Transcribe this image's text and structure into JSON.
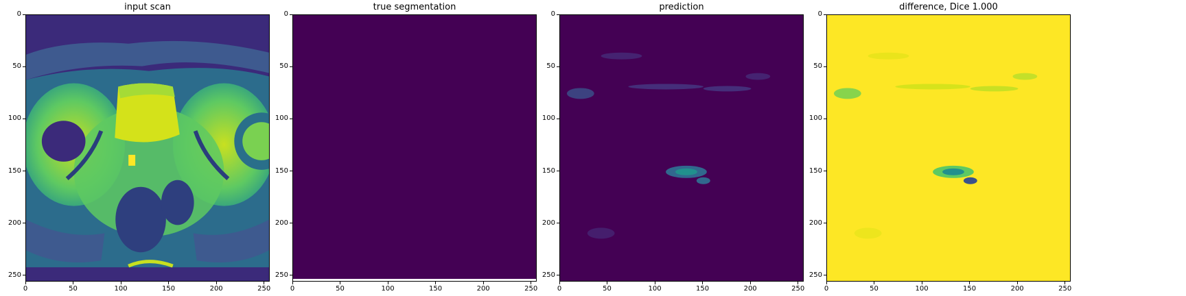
{
  "figure": {
    "panels": [
      {
        "id": "input-scan",
        "title": "input scan"
      },
      {
        "id": "true-segmentation",
        "title": "true segmentation"
      },
      {
        "id": "prediction",
        "title": "prediction"
      },
      {
        "id": "difference",
        "title": "difference, Dice 1.000"
      }
    ],
    "x_ticks": [
      "0",
      "50",
      "100",
      "150",
      "200",
      "250"
    ],
    "y_ticks": [
      "0",
      "50",
      "100",
      "150",
      "200",
      "250"
    ],
    "tick_values": [
      0,
      50,
      100,
      150,
      200,
      250
    ],
    "axis_range": [
      0,
      256
    ],
    "colormap": "viridis",
    "colors": {
      "viridis_low": "#440154",
      "viridis_mid": "#21908d",
      "viridis_green": "#5ec962",
      "viridis_high": "#fde725"
    }
  }
}
